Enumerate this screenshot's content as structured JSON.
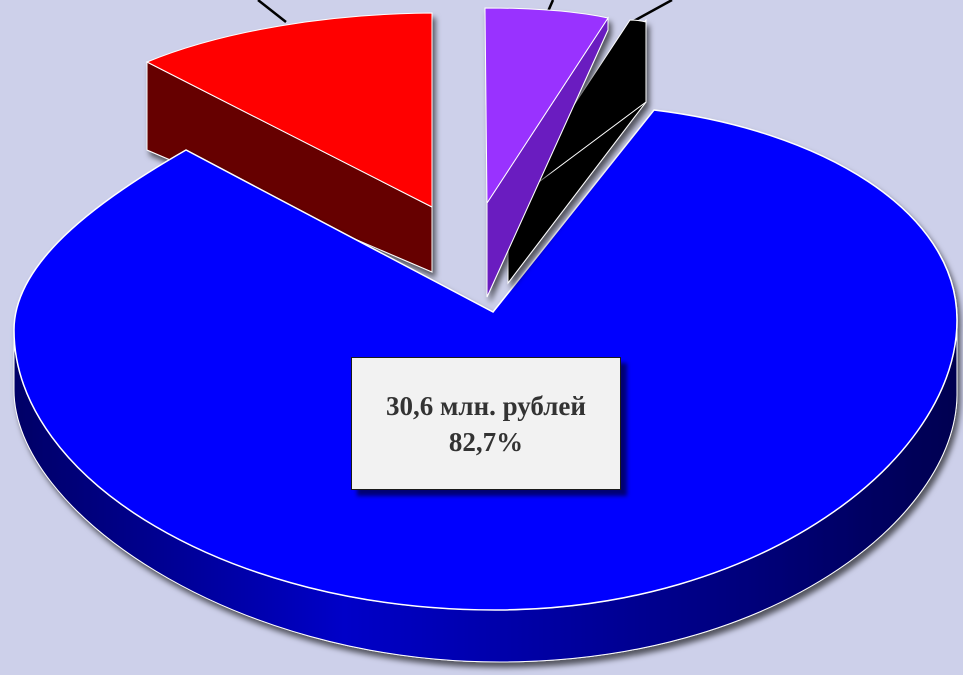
{
  "chart_data": {
    "type": "pie",
    "style": "3d-exploded",
    "slices": [
      {
        "value": 82.7,
        "label": "30,6 млн. рублей",
        "percent_label": "82,7%",
        "color": "#0000ff",
        "side_color": "#00006e"
      },
      {
        "value": 2.0,
        "color": "#000000",
        "side_color": "#000000"
      },
      {
        "value": 5.0,
        "color": "#9933ff",
        "side_color": "#6a1fc0"
      },
      {
        "value": 10.3,
        "color": "#ff0000",
        "side_color": "#660000"
      }
    ],
    "legend": "none"
  }
}
